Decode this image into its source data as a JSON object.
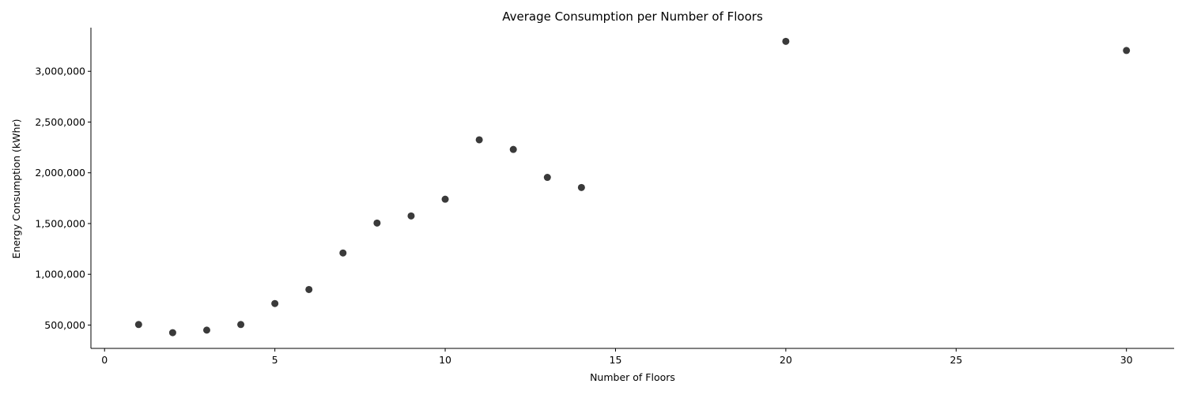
{
  "chart_data": {
    "type": "scatter",
    "title": "Average Consumption per Number of Floors",
    "xlabel": "Number of Floors",
    "ylabel": "Energy Consumption (kWhr)",
    "xlim": [
      -0.4,
      31.4
    ],
    "ylim": [
      270000,
      3430000
    ],
    "xticks": [
      0,
      5,
      10,
      15,
      20,
      25,
      30
    ],
    "xtick_labels": [
      "0",
      "5",
      "10",
      "15",
      "20",
      "25",
      "30"
    ],
    "yticks": [
      500000,
      1000000,
      1500000,
      2000000,
      2500000,
      3000000
    ],
    "ytick_labels": [
      "500,000",
      "1,000,000",
      "1,500,000",
      "2,000,000",
      "2,500,000",
      "3,000,000"
    ],
    "grid": false,
    "marker_color": "#3a3a3a",
    "points": [
      {
        "x": 1,
        "y": 505000
      },
      {
        "x": 2,
        "y": 425000
      },
      {
        "x": 3,
        "y": 450000
      },
      {
        "x": 4,
        "y": 505000
      },
      {
        "x": 5,
        "y": 712000
      },
      {
        "x": 6,
        "y": 850000
      },
      {
        "x": 7,
        "y": 1210000
      },
      {
        "x": 8,
        "y": 1505000
      },
      {
        "x": 9,
        "y": 1575000
      },
      {
        "x": 10,
        "y": 1740000
      },
      {
        "x": 11,
        "y": 2325000
      },
      {
        "x": 12,
        "y": 2230000
      },
      {
        "x": 13,
        "y": 1955000
      },
      {
        "x": 14,
        "y": 1855000
      },
      {
        "x": 20,
        "y": 3295000
      },
      {
        "x": 30,
        "y": 3205000
      }
    ]
  }
}
